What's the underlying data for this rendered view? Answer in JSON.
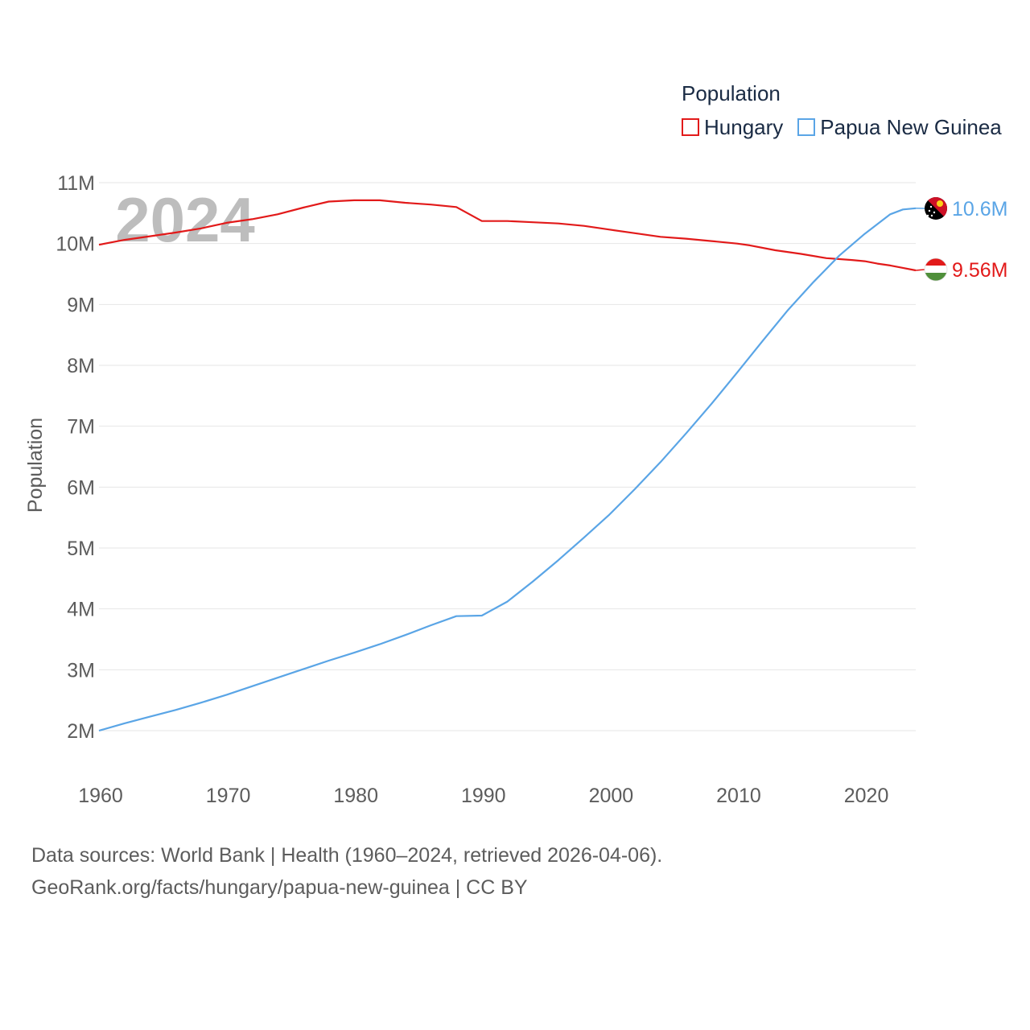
{
  "chart_data": {
    "type": "line",
    "title": "Population",
    "ylabel": "Population",
    "xlabel": "",
    "xlim": [
      1960,
      2024
    ],
    "ylim": [
      1500000,
      11000000
    ],
    "yticks": [
      {
        "value": 2000000,
        "label": "2M"
      },
      {
        "value": 3000000,
        "label": "3M"
      },
      {
        "value": 4000000,
        "label": "4M"
      },
      {
        "value": 5000000,
        "label": "5M"
      },
      {
        "value": 6000000,
        "label": "6M"
      },
      {
        "value": 7000000,
        "label": "7M"
      },
      {
        "value": 8000000,
        "label": "8M"
      },
      {
        "value": 9000000,
        "label": "9M"
      },
      {
        "value": 10000000,
        "label": "10M"
      },
      {
        "value": 11000000,
        "label": "11M"
      }
    ],
    "xticks": [
      {
        "value": 1960,
        "label": "1960"
      },
      {
        "value": 1970,
        "label": "1970"
      },
      {
        "value": 1980,
        "label": "1980"
      },
      {
        "value": 1990,
        "label": "1990"
      },
      {
        "value": 2000,
        "label": "2000"
      },
      {
        "value": 2010,
        "label": "2010"
      },
      {
        "value": 2020,
        "label": "2020"
      }
    ],
    "year_watermark": "2024",
    "legend_placement": "top-right",
    "series": [
      {
        "name": "Hungary",
        "color": "#e21a1a",
        "end_label": "9.56M",
        "flag": "hungary-flag",
        "points": [
          [
            1960,
            9.98
          ],
          [
            1962,
            10.06
          ],
          [
            1964,
            10.12
          ],
          [
            1966,
            10.18
          ],
          [
            1968,
            10.25
          ],
          [
            1970,
            10.34
          ],
          [
            1972,
            10.4
          ],
          [
            1974,
            10.48
          ],
          [
            1976,
            10.59
          ],
          [
            1978,
            10.69
          ],
          [
            1980,
            10.71
          ],
          [
            1982,
            10.71
          ],
          [
            1984,
            10.67
          ],
          [
            1986,
            10.64
          ],
          [
            1988,
            10.6
          ],
          [
            1990,
            10.37
          ],
          [
            1992,
            10.37
          ],
          [
            1994,
            10.35
          ],
          [
            1996,
            10.33
          ],
          [
            1998,
            10.29
          ],
          [
            2000,
            10.23
          ],
          [
            2002,
            10.17
          ],
          [
            2004,
            10.11
          ],
          [
            2006,
            10.08
          ],
          [
            2008,
            10.04
          ],
          [
            2010,
            10.0
          ],
          [
            2011,
            9.97
          ],
          [
            2013,
            9.89
          ],
          [
            2015,
            9.83
          ],
          [
            2017,
            9.76
          ],
          [
            2019,
            9.73
          ],
          [
            2020,
            9.71
          ],
          [
            2021,
            9.67
          ],
          [
            2022,
            9.64
          ],
          [
            2023,
            9.6
          ],
          [
            2024,
            9.56
          ]
        ]
      },
      {
        "name": "Papua New Guinea",
        "color": "#5aa5e6",
        "end_label": "10.6M",
        "flag": "papua-new-guinea-flag",
        "points": [
          [
            1960,
            2.0
          ],
          [
            1962,
            2.12
          ],
          [
            1964,
            2.23
          ],
          [
            1966,
            2.34
          ],
          [
            1968,
            2.46
          ],
          [
            1970,
            2.59
          ],
          [
            1972,
            2.73
          ],
          [
            1974,
            2.87
          ],
          [
            1976,
            3.01
          ],
          [
            1978,
            3.15
          ],
          [
            1980,
            3.28
          ],
          [
            1982,
            3.42
          ],
          [
            1984,
            3.57
          ],
          [
            1986,
            3.73
          ],
          [
            1988,
            3.88
          ],
          [
            1990,
            3.89
          ],
          [
            1992,
            4.12
          ],
          [
            1994,
            4.45
          ],
          [
            1996,
            4.8
          ],
          [
            1998,
            5.17
          ],
          [
            2000,
            5.55
          ],
          [
            2002,
            5.97
          ],
          [
            2004,
            6.41
          ],
          [
            2006,
            6.88
          ],
          [
            2008,
            7.37
          ],
          [
            2010,
            7.88
          ],
          [
            2012,
            8.4
          ],
          [
            2014,
            8.91
          ],
          [
            2016,
            9.37
          ],
          [
            2018,
            9.8
          ],
          [
            2020,
            10.16
          ],
          [
            2022,
            10.48
          ],
          [
            2023,
            10.56
          ],
          [
            2024,
            10.58
          ]
        ]
      }
    ]
  },
  "legend": {
    "title": "Population",
    "items": [
      {
        "label": "Hungary"
      },
      {
        "label": "Papua New Guinea"
      }
    ]
  },
  "footer": {
    "line1": "Data sources: World Bank | Health (1960–2024, retrieved 2026-04-06).",
    "line2": "GeoRank.org/facts/hungary/papua-new-guinea | CC BY"
  }
}
